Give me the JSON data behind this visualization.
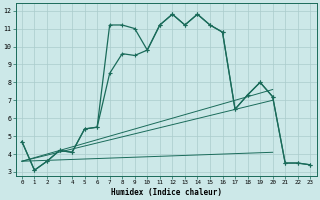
{
  "xlabel": "Humidex (Indice chaleur)",
  "xlim": [
    -0.5,
    23.5
  ],
  "ylim": [
    2.8,
    12.4
  ],
  "yticks": [
    3,
    4,
    5,
    6,
    7,
    8,
    9,
    10,
    11,
    12
  ],
  "xticks": [
    0,
    1,
    2,
    3,
    4,
    5,
    6,
    7,
    8,
    9,
    10,
    11,
    12,
    13,
    14,
    15,
    16,
    17,
    18,
    19,
    20,
    21,
    22,
    23
  ],
  "bg_color": "#cce8e8",
  "grid_color": "#aacccc",
  "line_color": "#1a6b5a",
  "line1_x": [
    0,
    1,
    2,
    3,
    4,
    5,
    6,
    7,
    8,
    9,
    10,
    11,
    12,
    13,
    14,
    15,
    16,
    17,
    18,
    19,
    20,
    21,
    22,
    23
  ],
  "line1_y": [
    4.7,
    3.1,
    3.6,
    4.2,
    4.1,
    5.4,
    5.5,
    11.2,
    11.2,
    11.0,
    9.8,
    11.2,
    11.8,
    11.2,
    11.8,
    11.2,
    10.8,
    6.5,
    7.3,
    8.0,
    7.2,
    3.5,
    3.5,
    3.4
  ],
  "line2_x": [
    0,
    1,
    2,
    3,
    4,
    5,
    6,
    7,
    8,
    9,
    10,
    11,
    12,
    13,
    14,
    15,
    16,
    17,
    18,
    19,
    20,
    21,
    22,
    23
  ],
  "line2_y": [
    4.7,
    3.1,
    3.6,
    4.2,
    4.1,
    5.4,
    5.5,
    8.5,
    9.6,
    9.5,
    9.8,
    11.2,
    11.8,
    11.2,
    11.8,
    11.2,
    10.8,
    6.5,
    7.3,
    8.0,
    7.2,
    3.5,
    3.5,
    3.4
  ],
  "trend1_x": [
    0,
    20
  ],
  "trend1_y": [
    3.6,
    7.6
  ],
  "trend2_x": [
    0,
    20
  ],
  "trend2_y": [
    3.6,
    7.0
  ],
  "trend3_x": [
    0,
    20
  ],
  "trend3_y": [
    3.6,
    4.1
  ]
}
